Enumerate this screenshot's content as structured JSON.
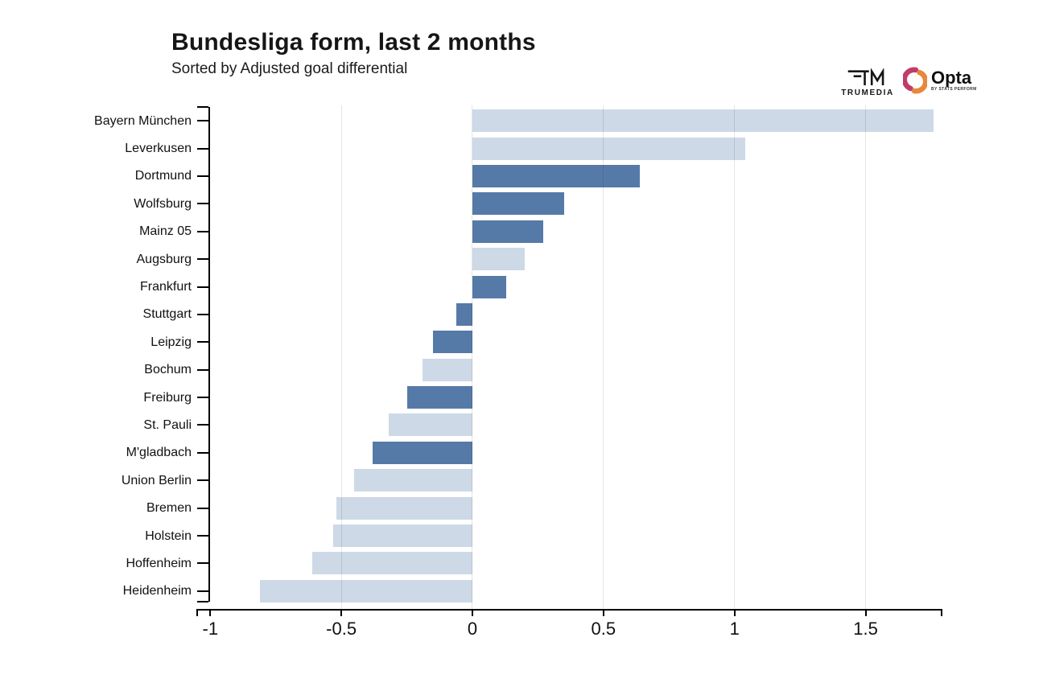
{
  "header": {
    "title": "Bundesliga form, last 2 months",
    "subtitle": "Sorted by Adjusted goal differential"
  },
  "logos": {
    "trumedia_label": "TRUMEDIA",
    "opta_label": "Opta",
    "opta_sub": "BY STATS PERFORM",
    "opta_crimson": "#c13c6b",
    "opta_orange": "#e8873d"
  },
  "chart_data": {
    "type": "bar",
    "orientation": "horizontal",
    "title": "Bundesliga form, last 2 months",
    "subtitle": "Sorted by Adjusted goal differential",
    "xlabel": "",
    "ylabel": "",
    "categories": [
      "Bayern München",
      "Leverkusen",
      "Dortmund",
      "Wolfsburg",
      "Mainz 05",
      "Augsburg",
      "Frankfurt",
      "Stuttgart",
      "Leipzig",
      "Bochum",
      "Freiburg",
      "St. Pauli",
      "M'gladbach",
      "Union Berlin",
      "Bremen",
      "Holstein",
      "Hoffenheim",
      "Heidenheim"
    ],
    "values": [
      1.76,
      1.04,
      0.64,
      0.35,
      0.27,
      0.2,
      0.13,
      -0.06,
      -0.15,
      -0.19,
      -0.25,
      -0.32,
      -0.38,
      -0.45,
      -0.52,
      -0.53,
      -0.61,
      -0.81
    ],
    "highlighted": [
      false,
      false,
      true,
      true,
      true,
      false,
      true,
      true,
      true,
      false,
      true,
      false,
      true,
      false,
      false,
      false,
      false,
      false
    ],
    "colors": {
      "highlight": "#567aa7",
      "base": "#cdd9e6"
    },
    "x_ticks": [
      -1,
      -0.5,
      0,
      0.5,
      1,
      1.5
    ],
    "xlim": [
      -1.05,
      1.79
    ],
    "grid": true,
    "legend": false
  }
}
